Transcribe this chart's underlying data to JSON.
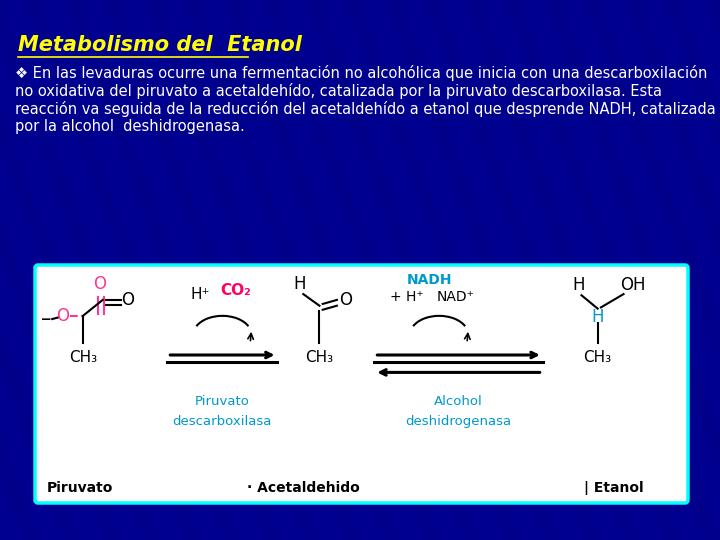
{
  "title": "Metabolismo del  Etanol",
  "title_color": "#FFFF00",
  "title_fontsize": 15,
  "bg_color": "#00008B",
  "text_color": "#FFFFFF",
  "text_fontsize": 10.5,
  "bullet": "❖",
  "line1": "En las levaduras ocurre una fermentación no alcohólica que inicia con una descarboxilación",
  "line2": "no oxidativa del piruvato a acetaldehído, catalizada por la piruvato descarboxilasa. Esta",
  "line3": "reacción va seguida de la reducción del acetaldehído a etanol que desprende NADH, catalizada",
  "line4": "por la alcohol  deshidrogenasa.",
  "box_bg": "#FFFFFF",
  "box_edge": "#00FFFF",
  "cyan_color": "#0099CC",
  "pink_color": "#FF3399",
  "red_color": "#FF0066",
  "black": "#000000"
}
